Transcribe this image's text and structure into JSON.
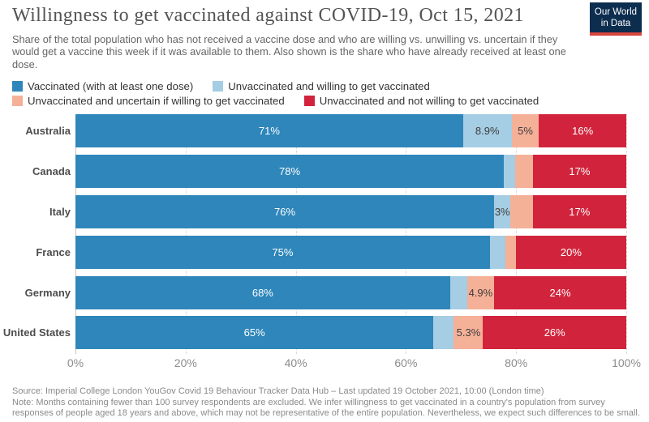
{
  "header": {
    "title": "Willingness to get vaccinated against COVID-19, Oct 15, 2021",
    "subtitle": "Share of the total population who has not received a vaccine dose and who are willing vs. unwilling vs. uncertain if they would get a vaccine this week if it was available to them. Also shown is the share who have already received at least one dose.",
    "logo": {
      "line1": "Our World",
      "line2": "in Data",
      "bg_color": "#0d2d4f",
      "accent_color": "#d8453c"
    }
  },
  "chart_data": {
    "type": "bar",
    "orientation": "horizontal",
    "stacked": true,
    "unit": "%",
    "xlim": [
      0,
      100
    ],
    "x_ticks": [
      "0%",
      "20%",
      "40%",
      "60%",
      "80%",
      "100%"
    ],
    "x_tick_values": [
      0,
      20,
      40,
      60,
      80,
      100
    ],
    "grid": "dashed-vertical",
    "legend_position": "top",
    "categories": [
      "Australia",
      "Canada",
      "Italy",
      "France",
      "Germany",
      "United States"
    ],
    "series": [
      {
        "name": "Vaccinated (with at least one dose)",
        "color": "#2e86ba",
        "label_color": "#ffffff",
        "values": [
          71,
          78,
          76,
          75,
          68,
          65
        ],
        "labels": [
          "71%",
          "78%",
          "76%",
          "75%",
          "68%",
          "65%"
        ]
      },
      {
        "name": "Unvaccinated and willing to get vaccinated",
        "color": "#a5cde3",
        "label_color": "#3d3d3d",
        "values": [
          8.9,
          2.1,
          3,
          2.8,
          3.1,
          3.7
        ],
        "labels": [
          "8.9%",
          "",
          "3%",
          "",
          "",
          ""
        ]
      },
      {
        "name": "Unvaccinated and uncertain if willing to get vaccinated",
        "color": "#f5b098",
        "label_color": "#3d3d3d",
        "values": [
          5,
          3.2,
          4,
          1.9,
          4.9,
          5.3
        ],
        "labels": [
          "5%",
          "",
          "",
          "",
          "4.9%",
          "5.3%"
        ]
      },
      {
        "name": "Unvaccinated and not willing to get vaccinated",
        "color": "#d1243c",
        "label_color": "#ffffff",
        "values": [
          16,
          17,
          17,
          20,
          24,
          26
        ],
        "labels": [
          "16%",
          "17%",
          "17%",
          "20%",
          "24%",
          "26%"
        ]
      }
    ],
    "legend_rows": [
      [
        0,
        1
      ],
      [
        2,
        3
      ]
    ]
  },
  "footer": {
    "source": "Source: Imperial College London YouGov Covid 19 Behaviour Tracker Data Hub – Last updated 19 October 2021, 10:00 (London time)",
    "note": "Note: Months containing fewer than 100 survey respondents are excluded. We infer willingness to get vaccinated in a country's population from survey responses of people aged 18 years and above, which may not be representative of the entire population. Nevertheless, we expect such differences to be small."
  }
}
